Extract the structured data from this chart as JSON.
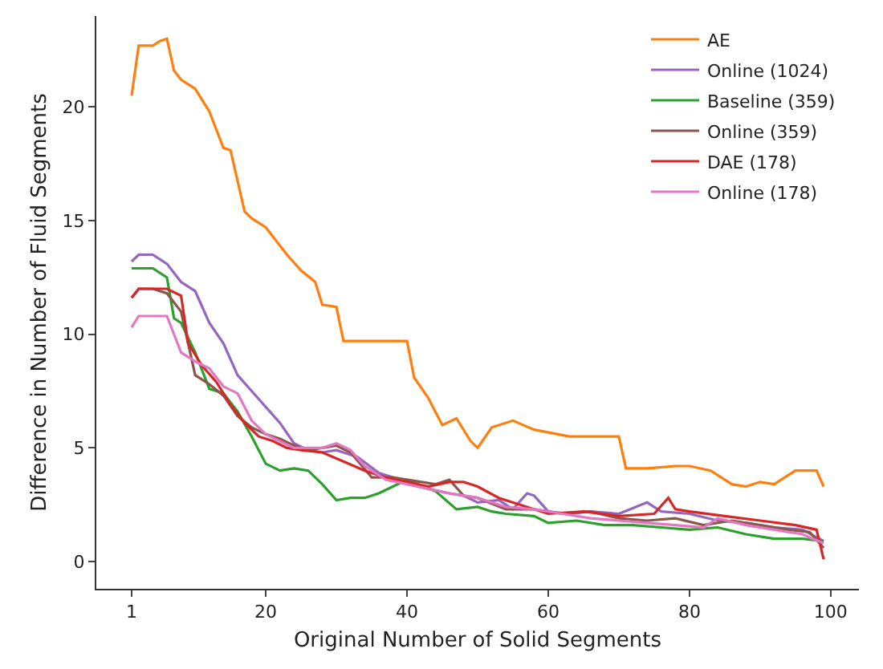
{
  "chart_data": {
    "type": "line",
    "xlabel": "Original Number of Solid Segments",
    "ylabel": "Difference in Number of Fluid Segments",
    "xlim": [
      -4,
      104
    ],
    "ylim": [
      -1.2,
      24
    ],
    "xticks": [
      1,
      20,
      40,
      60,
      80,
      100
    ],
    "yticks": [
      0,
      5,
      10,
      15,
      20
    ],
    "legend": "top right",
    "marker": "none",
    "line_style": "solid",
    "series": [
      {
        "name": "AE",
        "color": "#ff7f0e",
        "x": [
          1,
          2,
          4,
          5,
          6,
          7,
          8,
          10,
          12,
          14,
          15,
          17,
          18,
          20,
          23,
          25,
          27,
          28,
          30,
          31,
          33,
          40,
          41,
          43,
          45,
          47,
          49,
          50,
          52,
          55,
          58,
          63,
          66,
          70,
          71,
          74,
          78,
          80,
          83,
          86,
          88,
          90,
          92,
          95,
          98,
          99
        ],
        "values": [
          20.5,
          22.7,
          22.7,
          22.9,
          23,
          21.6,
          21.2,
          20.8,
          19.8,
          18.2,
          18.1,
          15.4,
          15.1,
          14.7,
          13.5,
          12.8,
          12.3,
          11.3,
          11.2,
          9.7,
          9.7,
          9.7,
          8.1,
          7.2,
          6.0,
          6.3,
          5.3,
          5.0,
          5.9,
          6.2,
          5.8,
          5.5,
          5.5,
          5.5,
          4.1,
          4.1,
          4.2,
          4.2,
          4.0,
          3.4,
          3.3,
          3.5,
          3.4,
          4.0,
          4.0,
          3.3
        ]
      },
      {
        "name": "Online (1024)",
        "color": "#9467bd",
        "x": [
          1,
          2,
          4,
          6,
          8,
          10,
          12,
          14,
          16,
          18,
          20,
          22,
          24,
          26,
          28,
          30,
          33,
          36,
          40,
          43,
          46,
          48,
          50,
          53,
          55,
          57,
          58,
          60,
          63,
          66,
          70,
          74,
          76,
          80,
          84,
          88,
          92,
          96,
          99
        ],
        "values": [
          13.2,
          13.5,
          13.5,
          13.1,
          12.3,
          11.9,
          10.5,
          9.6,
          8.2,
          7.5,
          6.8,
          6.1,
          5.2,
          4.9,
          4.8,
          4.9,
          4.6,
          3.9,
          3.5,
          3.2,
          3.0,
          2.9,
          2.6,
          2.7,
          2.3,
          3.0,
          2.9,
          2.2,
          2.1,
          2.2,
          2.1,
          2.6,
          2.2,
          2.1,
          1.8,
          1.7,
          1.5,
          1.4,
          0.9
        ]
      },
      {
        "name": "Baseline (359)",
        "color": "#2ca02c",
        "x": [
          1,
          2,
          4,
          6,
          7,
          8,
          10,
          12,
          14,
          16,
          18,
          20,
          22,
          24,
          26,
          28,
          30,
          32,
          34,
          36,
          40,
          44,
          47,
          50,
          52,
          54,
          58,
          60,
          64,
          68,
          72,
          76,
          80,
          84,
          88,
          92,
          96,
          99
        ],
        "values": [
          12.9,
          12.9,
          12.9,
          12.5,
          10.7,
          10.5,
          9.2,
          7.6,
          7.4,
          6.6,
          5.5,
          4.3,
          4.0,
          4.1,
          4.0,
          3.4,
          2.7,
          2.8,
          2.8,
          3.0,
          3.6,
          3.1,
          2.3,
          2.4,
          2.2,
          2.1,
          2.0,
          1.7,
          1.8,
          1.6,
          1.6,
          1.5,
          1.4,
          1.5,
          1.2,
          1.0,
          1.0,
          0.9
        ]
      },
      {
        "name": "Online (359)",
        "color": "#8c564b",
        "x": [
          1,
          2,
          4,
          6,
          8,
          10,
          12,
          14,
          16,
          18,
          20,
          22,
          24,
          26,
          28,
          30,
          32,
          35,
          38,
          40,
          44,
          46,
          48,
          50,
          54,
          58,
          62,
          66,
          70,
          74,
          78,
          82,
          86,
          90,
          94,
          97,
          99
        ],
        "values": [
          11.6,
          12.0,
          12.0,
          11.8,
          11.0,
          8.2,
          7.8,
          7.3,
          6.4,
          5.9,
          5.6,
          5.4,
          5.1,
          4.9,
          5.0,
          5.1,
          4.8,
          3.7,
          3.7,
          3.6,
          3.4,
          3.6,
          2.9,
          2.8,
          2.3,
          2.3,
          2.1,
          2.2,
          1.9,
          1.8,
          1.9,
          1.6,
          1.8,
          1.6,
          1.4,
          1.3,
          0.6
        ]
      },
      {
        "name": "DAE (178)",
        "color": "#d62728",
        "x": [
          1,
          2,
          4,
          6,
          8,
          9,
          11,
          13,
          15,
          17,
          19,
          21,
          23,
          25,
          28,
          31,
          34,
          37,
          40,
          43,
          46,
          48,
          50,
          53,
          56,
          60,
          65,
          70,
          75,
          77,
          78,
          80,
          85,
          90,
          95,
          98,
          99
        ],
        "values": [
          11.6,
          12.0,
          12.0,
          12.0,
          11.7,
          9.6,
          8.6,
          7.9,
          6.9,
          6.1,
          5.5,
          5.3,
          5.0,
          4.9,
          4.8,
          4.4,
          4.0,
          3.7,
          3.5,
          3.3,
          3.5,
          3.5,
          3.3,
          2.8,
          2.5,
          2.1,
          2.2,
          2.0,
          2.1,
          2.8,
          2.3,
          2.2,
          2.0,
          1.8,
          1.6,
          1.4,
          0.1
        ]
      },
      {
        "name": "Online (178)",
        "color": "#e377c2",
        "x": [
          1,
          2,
          4,
          6,
          8,
          10,
          12,
          14,
          16,
          18,
          20,
          22,
          24,
          26,
          28,
          30,
          32,
          34,
          37,
          40,
          43,
          46,
          50,
          54,
          58,
          62,
          66,
          70,
          74,
          78,
          82,
          84,
          88,
          92,
          96,
          99
        ],
        "values": [
          10.3,
          10.8,
          10.8,
          10.8,
          9.2,
          8.8,
          8.5,
          7.7,
          7.4,
          6.2,
          5.6,
          5.3,
          5.0,
          5.0,
          5.0,
          5.2,
          4.9,
          4.2,
          3.6,
          3.4,
          3.2,
          3.0,
          2.8,
          2.4,
          2.3,
          2.1,
          1.9,
          1.8,
          1.7,
          1.6,
          1.5,
          1.9,
          1.6,
          1.4,
          1.2,
          0.8
        ]
      }
    ]
  }
}
